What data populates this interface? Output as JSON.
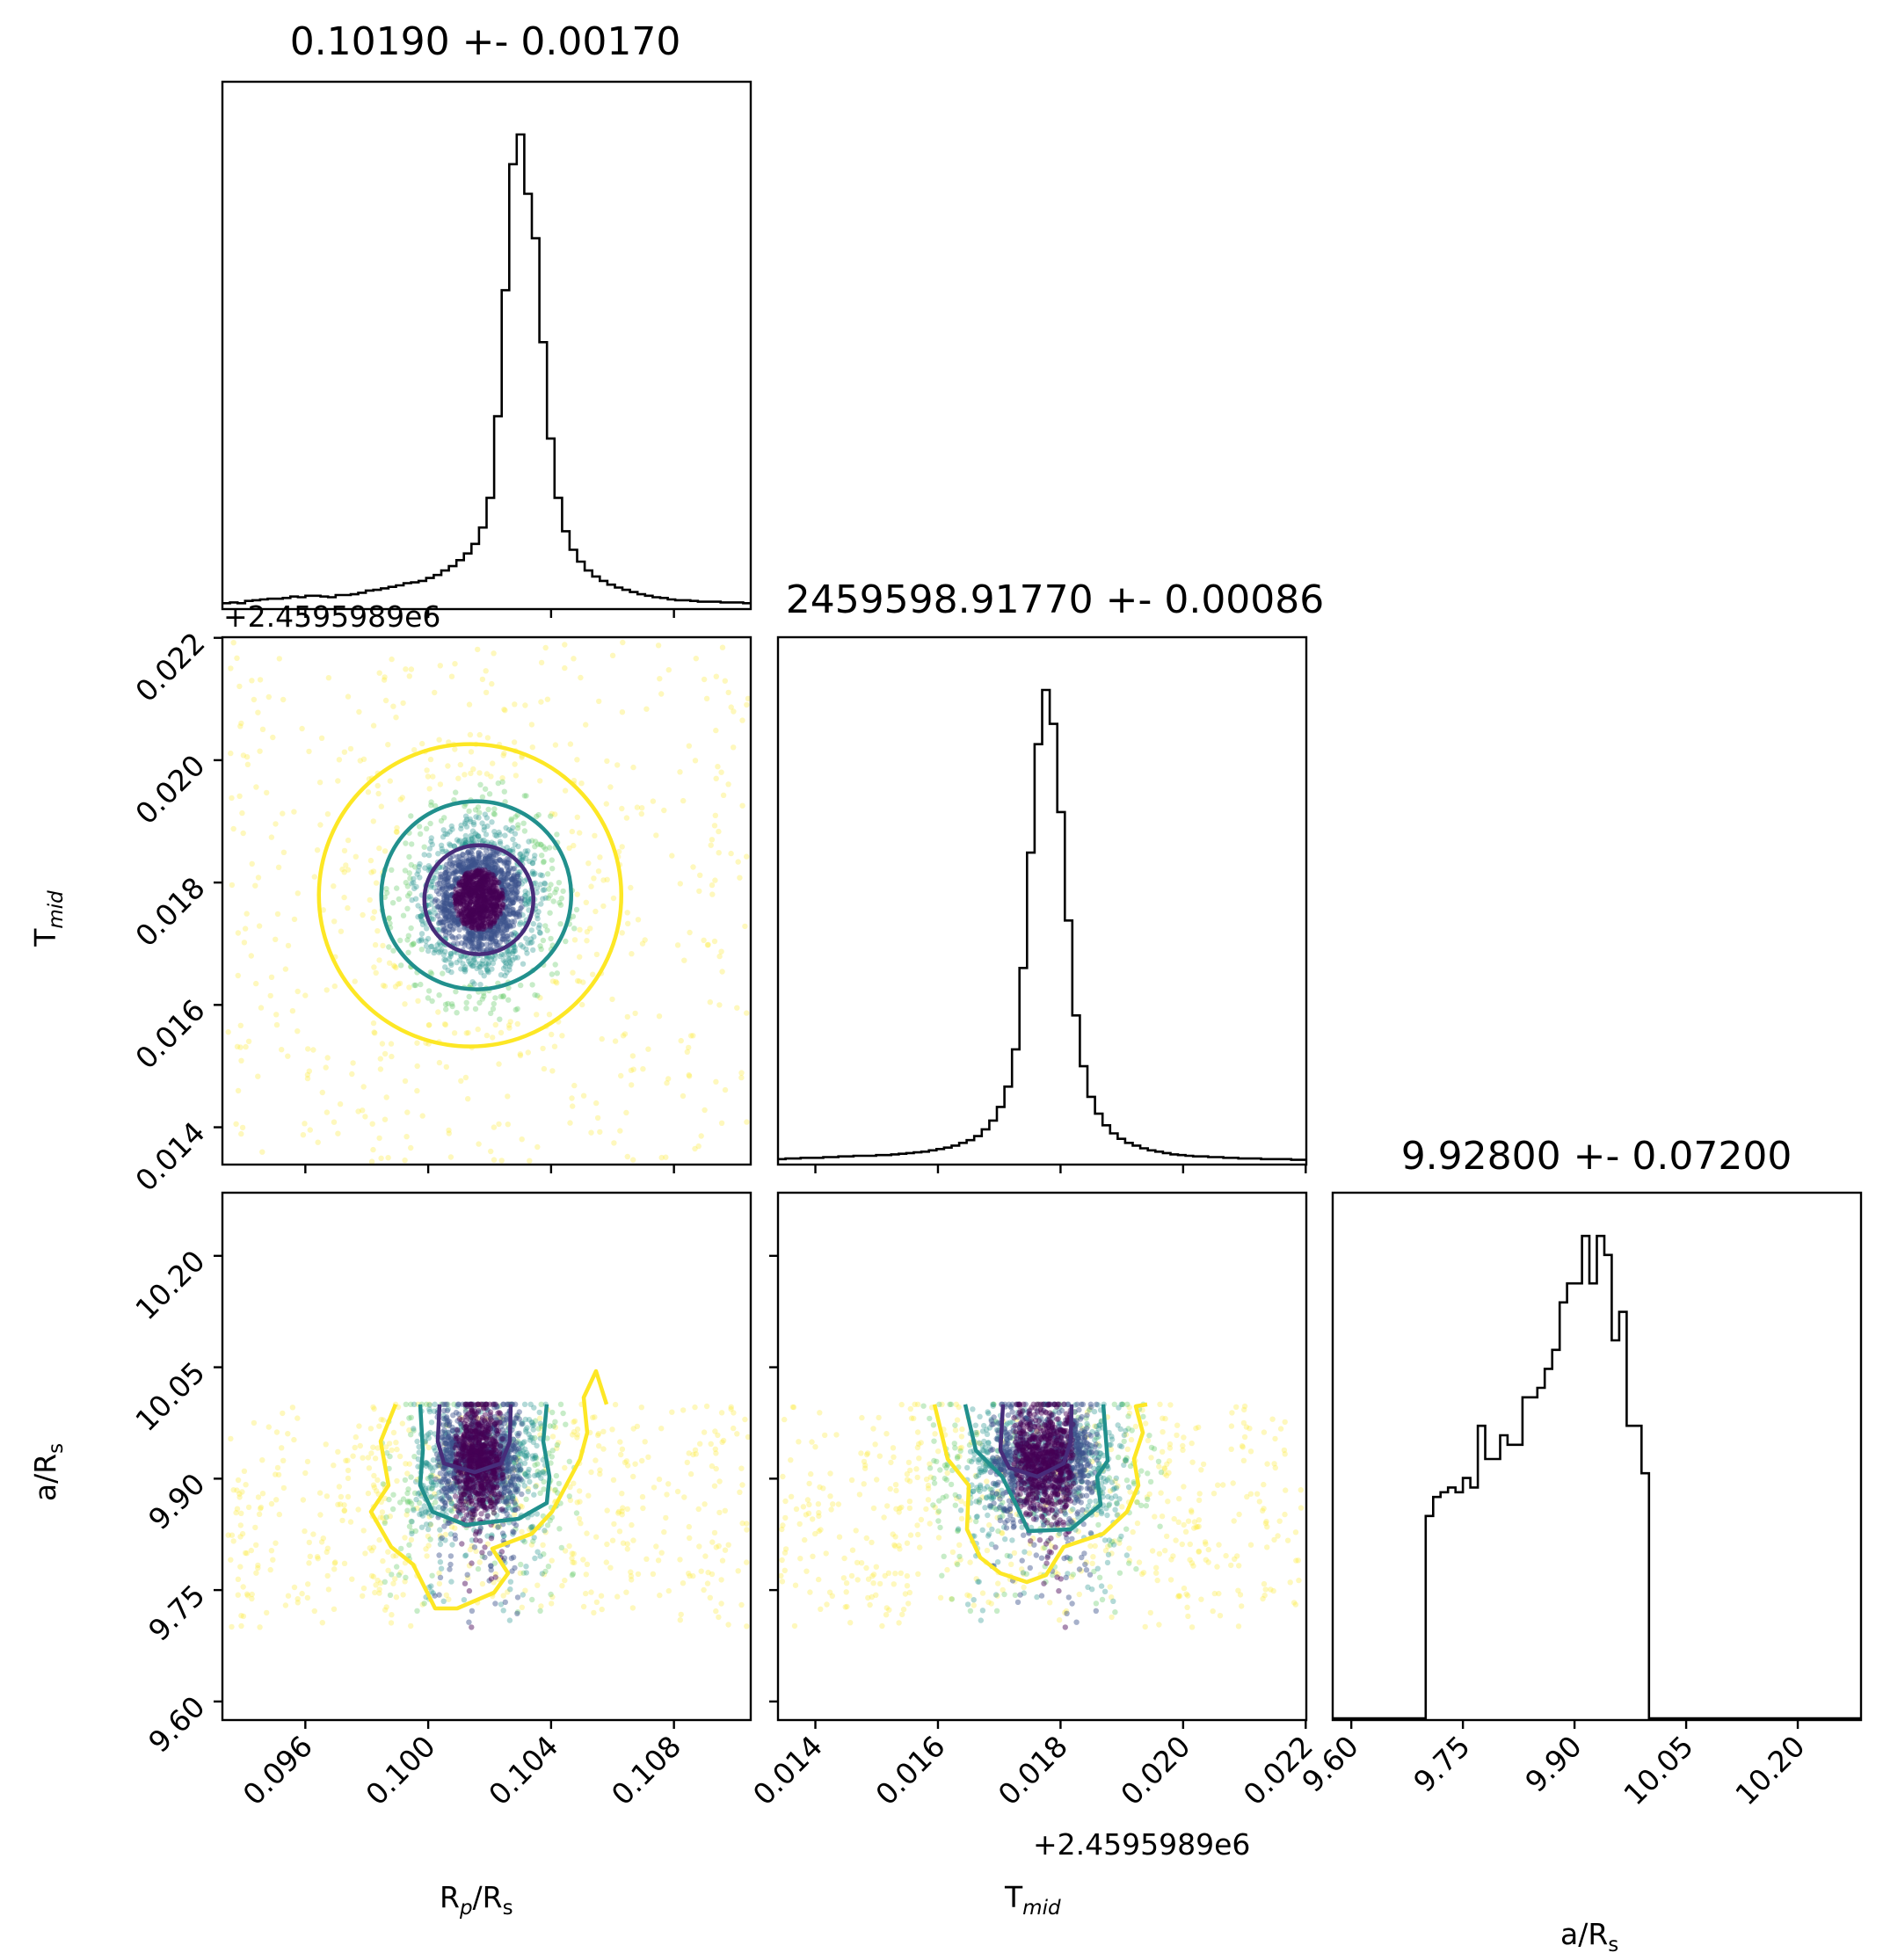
{
  "chart_data": {
    "type": "corner",
    "parameters": [
      {
        "symbol": "R",
        "subscript": "p/R",
        "subscript_tail": "s"
      },
      {
        "symbol": "T",
        "subscript": "mid"
      },
      {
        "symbol": "a/R",
        "subscript": "s"
      }
    ],
    "titles": [
      "0.10190 +- 0.00170",
      "2459598.91770 +- 0.00086",
      "9.92800 +- 0.07200"
    ],
    "xlabels": [
      "Rp/Rs",
      "Tmid",
      "a/Rs"
    ],
    "ylabels": [
      "Tmid",
      "a/Rs"
    ],
    "offset_text": "+2.4595989e6",
    "ranges": [
      [
        0.0933,
        0.1105
      ],
      [
        0.01339,
        0.02201
      ],
      [
        9.575,
        10.285
      ]
    ],
    "ticks": [
      {
        "values": [
          0.096,
          0.1,
          0.104,
          0.108
        ],
        "labels": [
          "0.096",
          "0.100",
          "0.104",
          "0.108"
        ]
      },
      {
        "values": [
          0.014,
          0.016,
          0.018,
          0.02,
          0.022
        ],
        "labels": [
          "0.014",
          "0.016",
          "0.018",
          "0.020",
          "0.022"
        ]
      },
      {
        "values": [
          9.6,
          9.75,
          9.9,
          10.05,
          10.2
        ],
        "labels": [
          "9.60",
          "9.75",
          "9.90",
          "10.05",
          "10.20"
        ]
      }
    ],
    "histograms": [
      {
        "param": "Rp/Rs",
        "bins": 70,
        "counts": [
          8,
          9,
          8,
          11,
          12,
          13,
          14,
          14,
          15,
          17,
          16,
          18,
          18,
          17,
          16,
          19,
          19,
          20,
          22,
          25,
          26,
          28,
          30,
          32,
          35,
          36,
          38,
          42,
          46,
          52,
          58,
          66,
          75,
          88,
          110,
          150,
          260,
          430,
          600,
          640,
          560,
          500,
          360,
          230,
          150,
          105,
          80,
          64,
          52,
          44,
          38,
          33,
          29,
          26,
          23,
          20,
          18,
          16,
          15,
          13,
          12,
          12,
          11,
          10,
          10,
          10,
          9,
          9,
          9,
          8
        ]
      },
      {
        "param": "Tmid",
        "bins": 70,
        "counts": [
          8,
          9,
          9,
          10,
          10,
          10,
          11,
          11,
          12,
          12,
          13,
          13,
          13,
          14,
          14,
          15,
          16,
          17,
          18,
          19,
          21,
          23,
          25,
          28,
          32,
          36,
          42,
          52,
          65,
          85,
          115,
          170,
          290,
          460,
          620,
          700,
          650,
          520,
          360,
          220,
          145,
          100,
          75,
          58,
          46,
          38,
          32,
          28,
          24,
          21,
          19,
          17,
          15,
          14,
          13,
          12,
          12,
          11,
          11,
          10,
          10,
          9,
          9,
          9,
          8,
          8,
          8,
          8,
          7,
          7
        ]
      },
      {
        "param": "a/Rs",
        "bins": 70,
        "counts": [
          0,
          0,
          0,
          0,
          0,
          0,
          0,
          0,
          0,
          0,
          0,
          0,
          0,
          0,
          0,
          0,
          0,
          0,
          0,
          0,
          0,
          0,
          0,
          0,
          0,
          0,
          0,
          0,
          0,
          0,
          0,
          0,
          0,
          0,
          0,
          0,
          0,
          0,
          0,
          0,
          0,
          0,
          0,
          0,
          0,
          0,
          0,
          0,
          0,
          0,
          0,
          0,
          0,
          0,
          0,
          0,
          0,
          0,
          0,
          0,
          0,
          0,
          0,
          0,
          0,
          0,
          0,
          0,
          0,
          0
        ]
      }
    ],
    "samples": {
      "n": 2600,
      "rp_center": 0.10165,
      "tmid_center": 0.01772,
      "ars_center": 9.925,
      "ars_bounds": [
        9.7,
        10.0
      ]
    },
    "levels": [
      {
        "level": "inner",
        "color": "#472c7a"
      },
      {
        "level": "middle",
        "color": "#21908d"
      },
      {
        "level": "outer",
        "color": "#fde725"
      }
    ],
    "scatter_colormap": [
      "#fde725",
      "#5ec962",
      "#21918c",
      "#3b528b",
      "#440154"
    ]
  }
}
